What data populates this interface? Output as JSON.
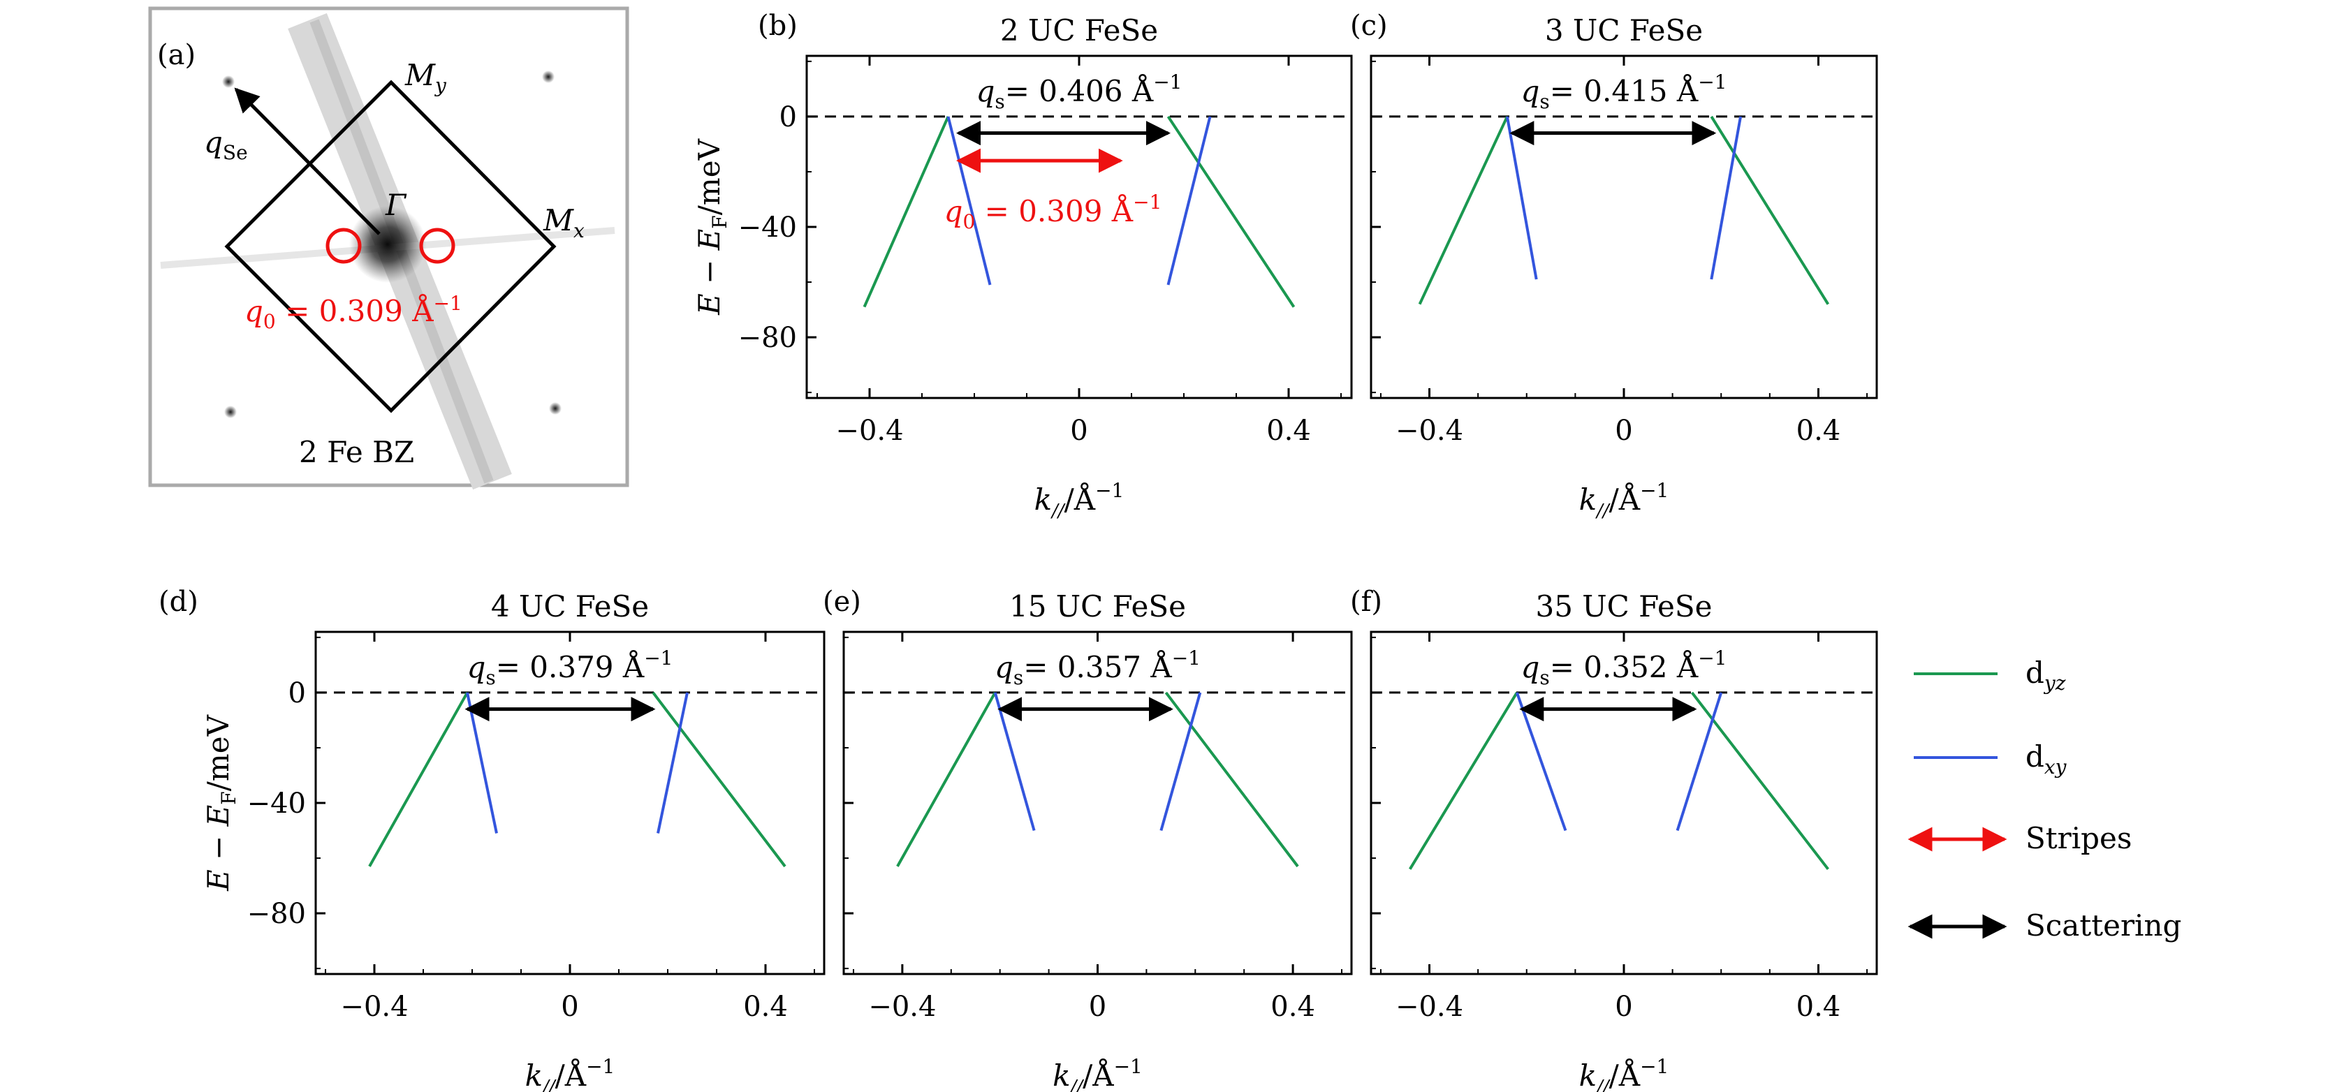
{
  "colors": {
    "dyz": "#1a9850",
    "dxy": "#3355dd",
    "stripes": "#ee1111",
    "scattering": "#000000",
    "frame_gray": "#aaaaaa"
  },
  "panel_a": {
    "label": "(a)",
    "q_se_label": "q",
    "q_se_sub": "Se",
    "my_label": "M",
    "my_sub": "y",
    "mx_label": "M",
    "mx_sub": "x",
    "gamma_label": "Γ",
    "q0_text": "q",
    "q0_sub": "0",
    "q0_value": " = 0.309  Å",
    "q0_sup": "−1",
    "bz_label": "2 Fe BZ"
  },
  "axis_common": {
    "xlabel": "k",
    "xlabel_sub": "//",
    "xlabel_unit": "/Å",
    "xlabel_sup": "−1",
    "ylabel": "E − E",
    "ylabel_sub": "F",
    "ylabel_unit": "/meV"
  },
  "legend": {
    "dyz_label": "d",
    "dyz_sub": "yz",
    "dxy_label": "d",
    "dxy_sub": "xy",
    "stripes_label": "Stripes",
    "scattering_label": "Scattering"
  },
  "chart_data": [
    {
      "panel": "(b)",
      "type": "line",
      "title": "2 UC FeSe",
      "xlim": [
        -0.52,
        0.52
      ],
      "ylim": [
        -102,
        22
      ],
      "xticks": [
        -0.4,
        0,
        0.4
      ],
      "xtick_labels": [
        "−0.4",
        "0",
        "0.4"
      ],
      "yticks": [
        0,
        -40,
        -80
      ],
      "ytick_labels": [
        "0",
        "−40",
        "−80"
      ],
      "show_ylabel": true,
      "qs_value": "= 0.406  Å",
      "series": [
        {
          "name": "dyz",
          "segments": [
            [
              [
                -0.25,
                0
              ],
              [
                -0.41,
                -69
              ]
            ],
            [
              [
                0.17,
                0
              ],
              [
                0.41,
                -69
              ]
            ]
          ]
        },
        {
          "name": "dxy",
          "segments": [
            [
              [
                -0.25,
                0
              ],
              [
                -0.17,
                -61
              ]
            ],
            [
              [
                0.25,
                0
              ],
              [
                0.17,
                -61
              ]
            ]
          ]
        }
      ],
      "scattering": {
        "from": -0.23,
        "to": 0.17,
        "y": -6
      },
      "stripes": {
        "from": -0.23,
        "to": 0.079,
        "y": -16,
        "label": "q",
        "label_sub": "0",
        "label_value": " = 0.309  Å",
        "label_sup": "−1"
      }
    },
    {
      "panel": "(c)",
      "type": "line",
      "title": "3 UC FeSe",
      "xlim": [
        -0.52,
        0.52
      ],
      "ylim": [
        -102,
        22
      ],
      "xticks": [
        -0.4,
        0,
        0.4
      ],
      "xtick_labels": [
        "−0.4",
        "0",
        "0.4"
      ],
      "yticks": [
        0,
        -40,
        -80
      ],
      "ytick_labels": [
        "",
        "",
        ""
      ],
      "show_ylabel": false,
      "qs_value": "= 0.415  Å",
      "series": [
        {
          "name": "dyz",
          "segments": [
            [
              [
                -0.24,
                0
              ],
              [
                -0.42,
                -68
              ]
            ],
            [
              [
                0.18,
                0
              ],
              [
                0.42,
                -68
              ]
            ]
          ]
        },
        {
          "name": "dxy",
          "segments": [
            [
              [
                -0.24,
                0
              ],
              [
                -0.18,
                -59
              ]
            ],
            [
              [
                0.24,
                0
              ],
              [
                0.18,
                -59
              ]
            ]
          ]
        }
      ],
      "scattering": {
        "from": -0.23,
        "to": 0.185,
        "y": -6
      }
    },
    {
      "panel": "(d)",
      "type": "line",
      "title": "4 UC FeSe",
      "xlim": [
        -0.52,
        0.52
      ],
      "ylim": [
        -102,
        22
      ],
      "xticks": [
        -0.4,
        0,
        0.4
      ],
      "xtick_labels": [
        "−0.4",
        "0",
        "0.4"
      ],
      "yticks": [
        0,
        -40,
        -80
      ],
      "ytick_labels": [
        "0",
        "−40",
        "−80"
      ],
      "show_ylabel": true,
      "qs_value": "= 0.379  Å",
      "series": [
        {
          "name": "dyz",
          "segments": [
            [
              [
                -0.21,
                0
              ],
              [
                -0.41,
                -63
              ]
            ],
            [
              [
                0.17,
                0
              ],
              [
                0.44,
                -63
              ]
            ]
          ]
        },
        {
          "name": "dxy",
          "segments": [
            [
              [
                -0.21,
                0
              ],
              [
                -0.15,
                -51
              ]
            ],
            [
              [
                0.24,
                0
              ],
              [
                0.18,
                -51
              ]
            ]
          ]
        }
      ],
      "scattering": {
        "from": -0.21,
        "to": 0.17,
        "y": -6
      }
    },
    {
      "panel": "(e)",
      "type": "line",
      "title": "15 UC FeSe",
      "xlim": [
        -0.52,
        0.52
      ],
      "ylim": [
        -102,
        22
      ],
      "xticks": [
        -0.4,
        0,
        0.4
      ],
      "xtick_labels": [
        "−0.4",
        "0",
        "0.4"
      ],
      "yticks": [
        0,
        -40,
        -80
      ],
      "ytick_labels": [
        "",
        "",
        ""
      ],
      "show_ylabel": false,
      "qs_value": "= 0.357  Å",
      "series": [
        {
          "name": "dyz",
          "segments": [
            [
              [
                -0.21,
                0
              ],
              [
                -0.41,
                -63
              ]
            ],
            [
              [
                0.14,
                0
              ],
              [
                0.41,
                -63
              ]
            ]
          ]
        },
        {
          "name": "dxy",
          "segments": [
            [
              [
                -0.21,
                0
              ],
              [
                -0.13,
                -50
              ]
            ],
            [
              [
                0.21,
                0
              ],
              [
                0.13,
                -50
              ]
            ]
          ]
        }
      ],
      "scattering": {
        "from": -0.2,
        "to": 0.15,
        "y": -6
      }
    },
    {
      "panel": "(f)",
      "type": "line",
      "title": "35 UC FeSe",
      "xlim": [
        -0.52,
        0.52
      ],
      "ylim": [
        -102,
        22
      ],
      "xticks": [
        -0.4,
        0,
        0.4
      ],
      "xtick_labels": [
        "−0.4",
        "0",
        "0.4"
      ],
      "yticks": [
        0,
        -40,
        -80
      ],
      "ytick_labels": [
        "",
        "",
        ""
      ],
      "show_ylabel": false,
      "qs_value": "= 0.352  Å",
      "series": [
        {
          "name": "dyz",
          "segments": [
            [
              [
                -0.22,
                0
              ],
              [
                -0.44,
                -64
              ]
            ],
            [
              [
                0.14,
                0
              ],
              [
                0.42,
                -64
              ]
            ]
          ]
        },
        {
          "name": "dxy",
          "segments": [
            [
              [
                -0.22,
                0
              ],
              [
                -0.12,
                -50
              ]
            ],
            [
              [
                0.2,
                0
              ],
              [
                0.11,
                -50
              ]
            ]
          ]
        }
      ],
      "scattering": {
        "from": -0.21,
        "to": 0.145,
        "y": -6
      }
    }
  ]
}
